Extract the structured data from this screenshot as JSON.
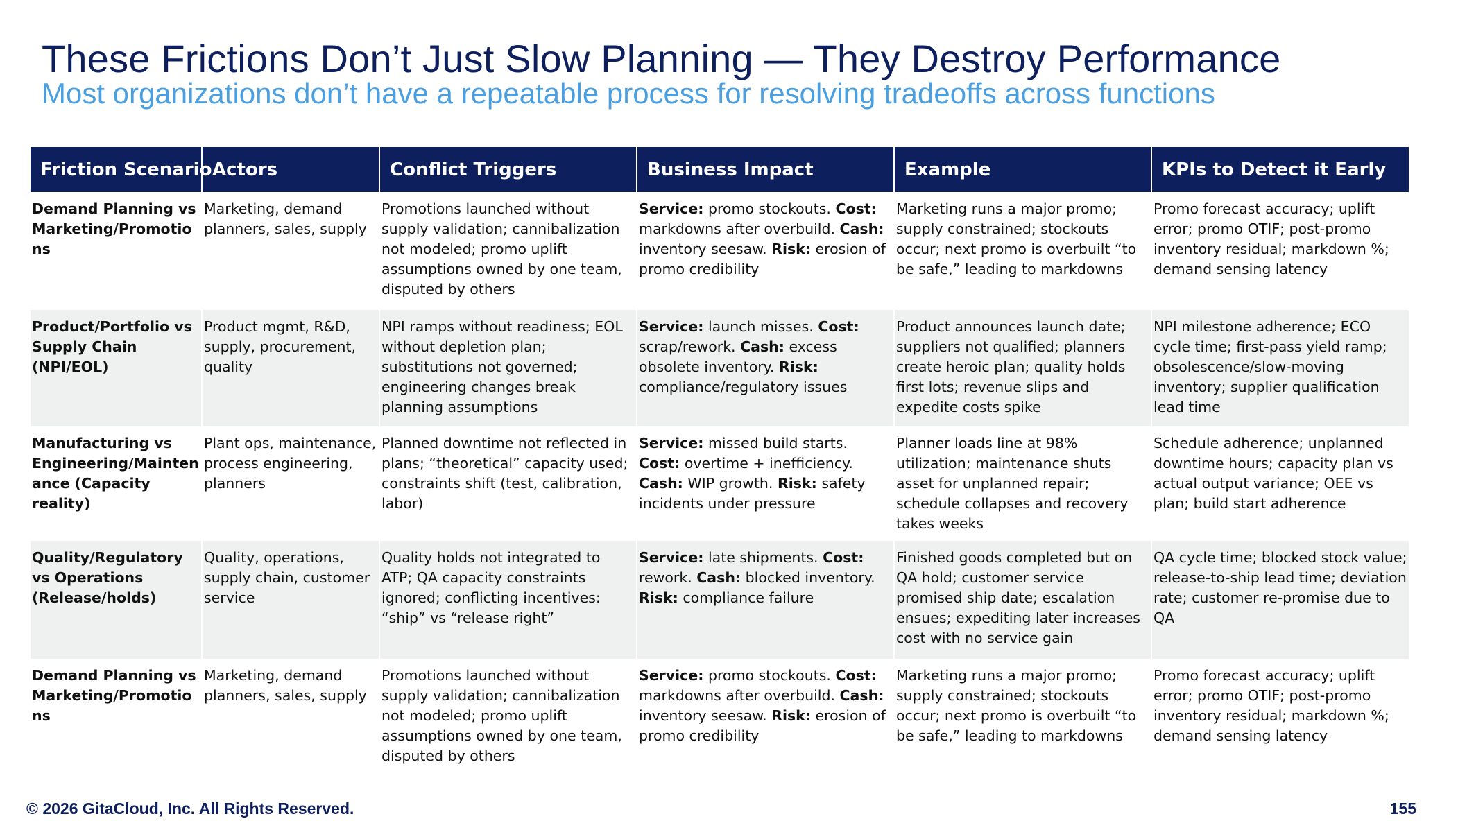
{
  "title": "These Frictions Don’t Just Slow Planning — They Destroy Performance",
  "subtitle": "Most organizations don’t have a repeatable process for resolving tradeoffs across functions",
  "table": {
    "headers": [
      "Friction Scenario",
      "Actors",
      "Conflict Triggers",
      "Business Impact",
      "Example",
      "KPIs to Detect it Early"
    ],
    "impact_labels": {
      "service": "Service:",
      "cost": "Cost:",
      "cash": "Cash:",
      "risk": "Risk:"
    },
    "rows": [
      {
        "scenario": "Demand Planning vs Marketing/Promotions",
        "actors": "Marketing, demand planners, sales, supply",
        "triggers": "Promotions launched without supply validation; cannibalization not modeled; promo uplift assumptions owned by one team, disputed by others",
        "impact": {
          "service": " promo stockouts. ",
          "cost": " markdowns after overbuild. ",
          "cash": " inventory seesaw. ",
          "risk": " erosion of promo credibility"
        },
        "example": "Marketing runs a major promo; supply constrained; stockouts occur; next promo is overbuilt “to be safe,” leading to markdowns",
        "kpis": "Promo forecast accuracy; uplift error; promo OTIF; post-promo inventory residual; markdown %; demand sensing latency"
      },
      {
        "scenario": "Product/Portfolio vs Supply Chain (NPI/EOL)",
        "actors": "Product mgmt, R&D, supply, procurement, quality",
        "triggers": "NPI ramps without readiness; EOL without depletion plan; substitutions not governed; engineering changes break planning assumptions",
        "impact": {
          "service": " launch misses. ",
          "cost": " scrap/rework. ",
          "cash": " excess obsolete inventory. ",
          "risk": " compliance/regulatory issues"
        },
        "example": "Product announces launch date; suppliers not qualified; planners create heroic plan; quality holds first lots; revenue slips and expedite costs spike",
        "kpis": "NPI milestone adherence; ECO cycle time; first-pass yield ramp; obsolescence/slow-moving inventory; supplier qualification lead time"
      },
      {
        "scenario": "Manufacturing vs Engineering/Maintenance (Capacity reality)",
        "actors": "Plant ops, maintenance, process engineering, planners",
        "triggers": "Planned downtime not reflected in plans; “theoretical” capacity used; constraints shift (test, calibration, labor)",
        "impact": {
          "service": " missed build starts. ",
          "cost": " overtime + inefficiency. ",
          "cash": " WIP growth. ",
          "risk": " safety incidents under pressure"
        },
        "example": "Planner loads line at 98% utilization; maintenance shuts asset for unplanned repair; schedule collapses and recovery takes weeks",
        "kpis": "Schedule adherence; unplanned downtime hours; capacity plan vs actual output variance; OEE vs plan; build start adherence"
      },
      {
        "scenario": "Quality/Regulatory vs Operations (Release/holds)",
        "actors": "Quality, operations, supply chain, customer service",
        "triggers": "Quality holds not integrated to ATP; QA capacity constraints ignored; conflicting incentives: “ship” vs “release right”",
        "impact": {
          "service": " late shipments. ",
          "cost": " rework. ",
          "cash": " blocked inventory. ",
          "risk": " compliance failure"
        },
        "example": "Finished goods completed but on QA hold; customer service promised ship date; escalation ensues; expediting later increases cost with no service gain",
        "kpis": "QA cycle time; blocked stock value; release-to-ship lead time; deviation rate; customer re-promise due to QA"
      },
      {
        "scenario": "Demand Planning vs Marketing/Promotions",
        "actors": "Marketing, demand planners, sales, supply",
        "triggers": "Promotions launched without supply validation; cannibalization not modeled; promo uplift assumptions owned by one team, disputed by others",
        "impact": {
          "service": " promo stockouts. ",
          "cost": " markdowns after overbuild. ",
          "cash": " inventory seesaw. ",
          "risk": " erosion of promo credibility"
        },
        "example": "Marketing runs a major promo; supply constrained; stockouts occur; next promo is overbuilt “to be safe,” leading to markdowns",
        "kpis": "Promo forecast accuracy; uplift error; promo OTIF; post-promo inventory residual; markdown %; demand sensing latency"
      }
    ]
  },
  "footer": {
    "copyright": "© 2026 GitaCloud, Inc. All Rights Reserved.",
    "page_number": "155"
  }
}
